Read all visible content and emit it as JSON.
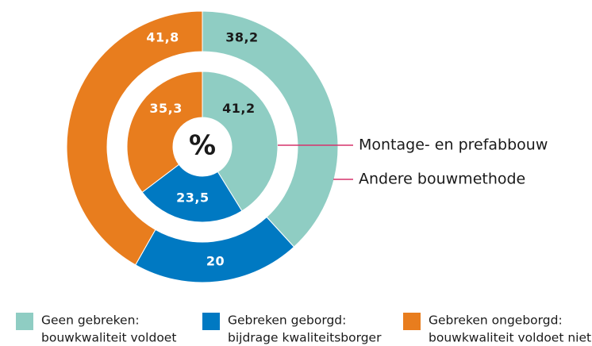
{
  "chart_data": {
    "type": "donut",
    "center_label": "%",
    "categories": [
      [
        "Geen gebreken:",
        "bouwkwaliteit voldoet"
      ],
      [
        "Gebreken geborgd:",
        "bijdrage kwaliteitsborger"
      ],
      [
        "Gebreken ongeborgd:",
        "bouwkwaliteit voldoet niet"
      ]
    ],
    "colors": [
      "#8fcdc3",
      "#0079c2",
      "#e87d1e"
    ],
    "series": [
      {
        "name": "Andere bouwmethode",
        "values": [
          38.2,
          20,
          41.8
        ],
        "value_labels": [
          "38,2",
          "20",
          "41,8"
        ]
      },
      {
        "name": "Montage- en prefabbouw",
        "values": [
          41.2,
          23.5,
          35.3
        ],
        "value_labels": [
          "41,2",
          "23,5",
          "35,3"
        ]
      }
    ]
  }
}
